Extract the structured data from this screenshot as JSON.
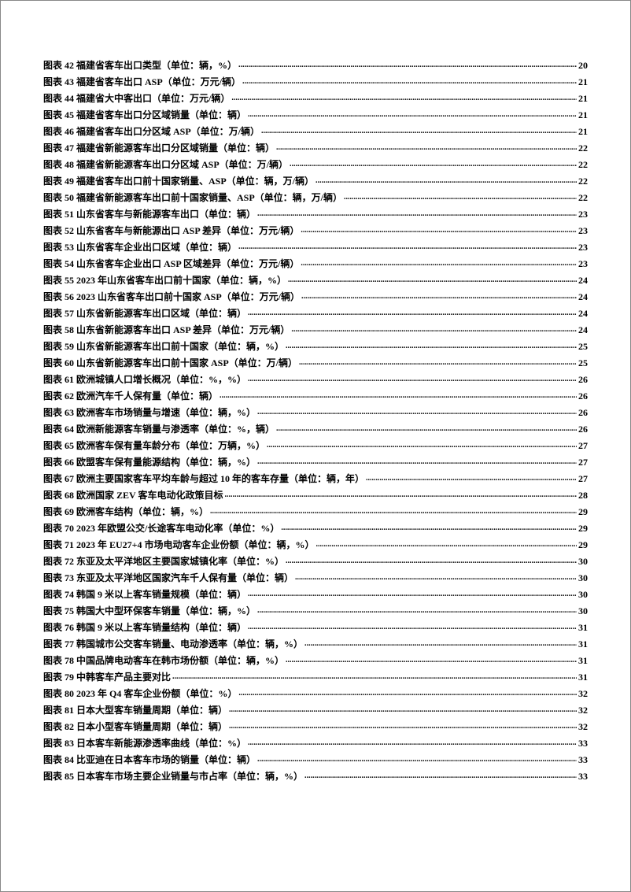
{
  "toc": [
    {
      "label": "图表 42 福建省客车出口类型（单位：辆，%）",
      "page": "20"
    },
    {
      "label": "图表 43 福建省客车出口 ASP（单位：万元/辆）",
      "page": "21"
    },
    {
      "label": "图表 44 福建省大中客出口（单位：万元/辆）",
      "page": "21"
    },
    {
      "label": "图表 45 福建省客车出口分区域销量（单位：辆）",
      "page": "21"
    },
    {
      "label": "图表 46 福建省客车出口分区域 ASP（单位：万/辆）",
      "page": "21"
    },
    {
      "label": "图表 47 福建省新能源客车出口分区域销量（单位：辆）",
      "page": "22"
    },
    {
      "label": "图表 48 福建省新能源客车出口分区域 ASP（单位：万/辆）",
      "page": "22"
    },
    {
      "label": "图表 49 福建省客车出口前十国家销量、ASP（单位：辆，万/辆）",
      "page": "22"
    },
    {
      "label": "图表 50 福建省新能源客车出口前十国家销量、ASP（单位：辆，万/辆）",
      "page": "22"
    },
    {
      "label": "图表 51 山东省客车与新能源客车出口（单位：辆）",
      "page": "23"
    },
    {
      "label": "图表 52 山东省客车与新能源出口 ASP 差异（单位：万元/辆）",
      "page": "23"
    },
    {
      "label": "图表 53 山东省客车企业出口区域（单位：辆）",
      "page": "23"
    },
    {
      "label": "图表 54 山东省客车企业出口 ASP 区域差异（单位：万元/辆）",
      "page": "23"
    },
    {
      "label": "图表 55 2023 年山东省客车出口前十国家（单位：辆，%）",
      "page": "24"
    },
    {
      "label": "图表 56 2023 山东省客车出口前十国家 ASP（单位：万元/辆）",
      "page": "24"
    },
    {
      "label": "图表 57 山东省新能源客车出口区域（单位：辆）",
      "page": "24"
    },
    {
      "label": "图表 58 山东省新能源客车出口 ASP 差异（单位：万元/辆）",
      "page": "24"
    },
    {
      "label": "图表 59 山东省新能源客车出口前十国家（单位：辆，%）",
      "page": "25"
    },
    {
      "label": "图表 60 山东省新能源客车出口前十国家 ASP（单位：万/辆）",
      "page": "25"
    },
    {
      "label": "图表 61 欧洲城镇人口增长概况（单位：%，%）",
      "page": "26"
    },
    {
      "label": "图表 62 欧洲汽车千人保有量（单位：辆）",
      "page": "26"
    },
    {
      "label": "图表 63 欧洲客车市场销量与增速（单位：辆，%）",
      "page": "26"
    },
    {
      "label": "图表 64 欧洲新能源客车销量与渗透率（单位：%，辆）",
      "page": "26"
    },
    {
      "label": "图表 65 欧洲客车保有量车龄分布（单位：万辆，%）",
      "page": "27"
    },
    {
      "label": "图表 66 欧盟客车保有量能源结构（单位：辆，%）",
      "page": "27"
    },
    {
      "label": "图表 67 欧洲主要国家客车平均车龄与超过 10 年的客车存量（单位：辆，年）",
      "page": "27"
    },
    {
      "label": "图表 68 欧洲国家 ZEV 客车电动化政策目标",
      "page": "28"
    },
    {
      "label": "图表 69 欧洲客车结构（单位：辆，%）",
      "page": "29"
    },
    {
      "label": "图表 70 2023 年欧盟公交/长途客车电动化率（单位：%）",
      "page": "29"
    },
    {
      "label": "图表 71 2023 年 EU27+4 市场电动客车企业份额（单位：辆，%）",
      "page": "29"
    },
    {
      "label": "图表 72 东亚及太平洋地区主要国家城镇化率（单位：%）",
      "page": "30"
    },
    {
      "label": "图表 73 东亚及太平洋地区国家汽车千人保有量（单位：辆）",
      "page": "30"
    },
    {
      "label": "图表 74 韩国 9 米以上客车销量规模（单位：辆）",
      "page": "30"
    },
    {
      "label": "图表 75 韩国大中型环保客车销量（单位：辆，%）",
      "page": "30"
    },
    {
      "label": "图表 76 韩国 9 米以上客车销量结构（单位：辆）",
      "page": "31"
    },
    {
      "label": "图表 77 韩国城市公交客车销量、电动渗透率（单位：辆，%）",
      "page": "31"
    },
    {
      "label": "图表 78 中国品牌电动客车在韩市场份额（单位：辆，%）",
      "page": "31"
    },
    {
      "label": "图表 79 中韩客车产品主要对比",
      "page": "31"
    },
    {
      "label": "图表 80 2023 年 Q4 客车企业份额（单位：%）",
      "page": "32"
    },
    {
      "label": "图表 81 日本大型客车销量周期（单位：辆）",
      "page": "32"
    },
    {
      "label": "图表 82 日本小型客车销量周期（单位：辆）",
      "page": "32"
    },
    {
      "label": "图表 83 日本客车新能源渗透率曲线（单位：%）",
      "page": "33"
    },
    {
      "label": "图表 84 比亚迪在日本客车市场的销量（单位：辆）",
      "page": "33"
    },
    {
      "label": "图表 85 日本客车市场主要企业销量与市占率（单位：辆，%）",
      "page": "33"
    }
  ]
}
